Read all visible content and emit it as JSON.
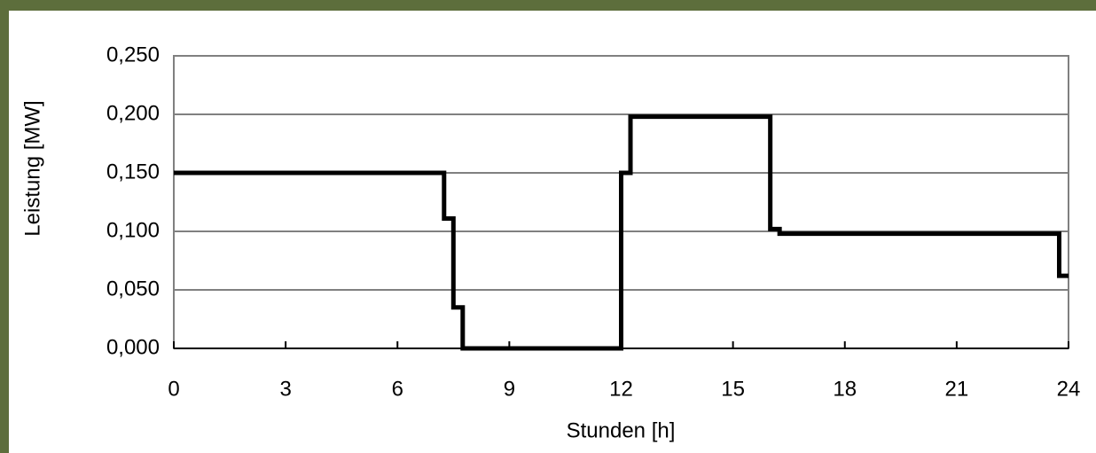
{
  "chart_data": {
    "type": "line",
    "step": "post",
    "x_label": "Stunden [h]",
    "y_label": "Leistung [MW]",
    "series": [
      {
        "color": "#000000",
        "x": [
          0,
          7.25,
          7.5,
          7.75,
          12,
          12.25,
          16,
          16.25,
          23.75,
          24
        ],
        "values": [
          0.15,
          0.111,
          0.035,
          0,
          0.15,
          0.198,
          0.102,
          0.098,
          0.062,
          0.062
        ]
      }
    ],
    "xlim": [
      0,
      24
    ],
    "xticks": [
      0,
      3,
      6,
      9,
      12,
      15,
      18,
      21,
      24
    ],
    "ylim": [
      0,
      0.25
    ],
    "yticks": [
      {
        "value": 0,
        "label": "0,000"
      },
      {
        "value": 0.05,
        "label": "0,050"
      },
      {
        "value": 0.1,
        "label": "0,100"
      },
      {
        "value": 0.15,
        "label": "0,150"
      },
      {
        "value": 0.2,
        "label": "0,200"
      },
      {
        "value": 0.25,
        "label": "0,250"
      }
    ],
    "grid": true
  }
}
